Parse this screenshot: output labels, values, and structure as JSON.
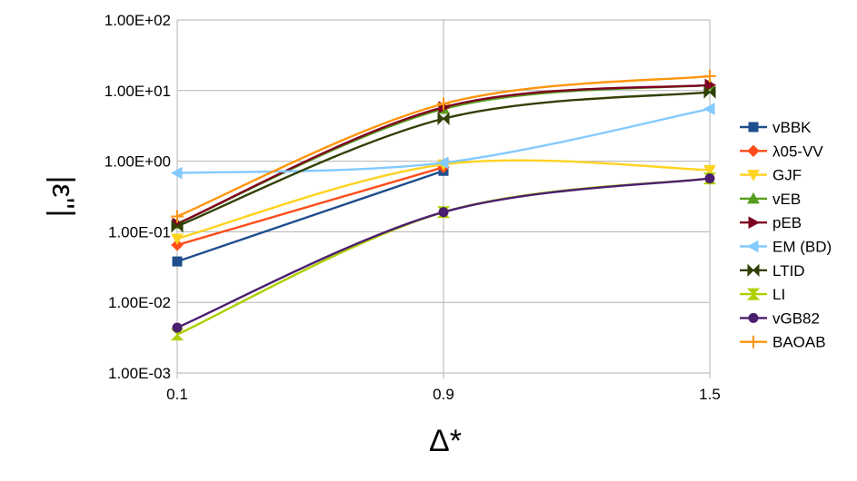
{
  "chart_data": {
    "type": "line",
    "title": "",
    "xlabel": "Δ*",
    "ylabel": "|ε''|",
    "y_scale": "log",
    "ylim": [
      0.001,
      100
    ],
    "yticks": [
      "1.00E-03",
      "1.00E-02",
      "1.00E-01",
      "1.00E+00",
      "1.00E+01",
      "1.00E+02"
    ],
    "x_ticks": [
      "0.1",
      "0.9",
      "1.5"
    ],
    "x": [
      0.1,
      0.9,
      1.5
    ],
    "grid": true,
    "legend_position": "right",
    "series": [
      {
        "name": "vBBK",
        "color": "#1f4e8c",
        "marker": "square",
        "values": [
          0.038,
          0.73,
          null
        ]
      },
      {
        "name": "λ05-VV",
        "color": "#ff4d1a",
        "marker": "diamond",
        "values": [
          0.065,
          0.82,
          null
        ]
      },
      {
        "name": "GJF",
        "color": "#ffd320",
        "marker": "triangle-down",
        "values": [
          0.08,
          0.9,
          0.75
        ]
      },
      {
        "name": "vEB",
        "color": "#579d1c",
        "marker": "triangle-up",
        "values": [
          0.13,
          5.5,
          12
        ]
      },
      {
        "name": "pEB",
        "color": "#7e0021",
        "marker": "triangle-right",
        "values": [
          0.13,
          5.8,
          12
        ]
      },
      {
        "name": "EM (BD)",
        "color": "#83caff",
        "marker": "triangle-left",
        "values": [
          0.68,
          0.95,
          5.5
        ]
      },
      {
        "name": "LTID",
        "color": "#314004",
        "marker": "bowtie",
        "values": [
          0.12,
          4.0,
          9.5
        ]
      },
      {
        "name": "LI",
        "color": "#aecf00",
        "marker": "hourglass",
        "values": [
          0.0035,
          0.19,
          0.57
        ]
      },
      {
        "name": "vGB82",
        "color": "#4b1f6f",
        "marker": "circle",
        "values": [
          0.0044,
          0.19,
          0.57
        ]
      },
      {
        "name": "BAOAB",
        "color": "#ff950e",
        "marker": "plus",
        "values": [
          0.165,
          6.5,
          16
        ]
      }
    ]
  }
}
